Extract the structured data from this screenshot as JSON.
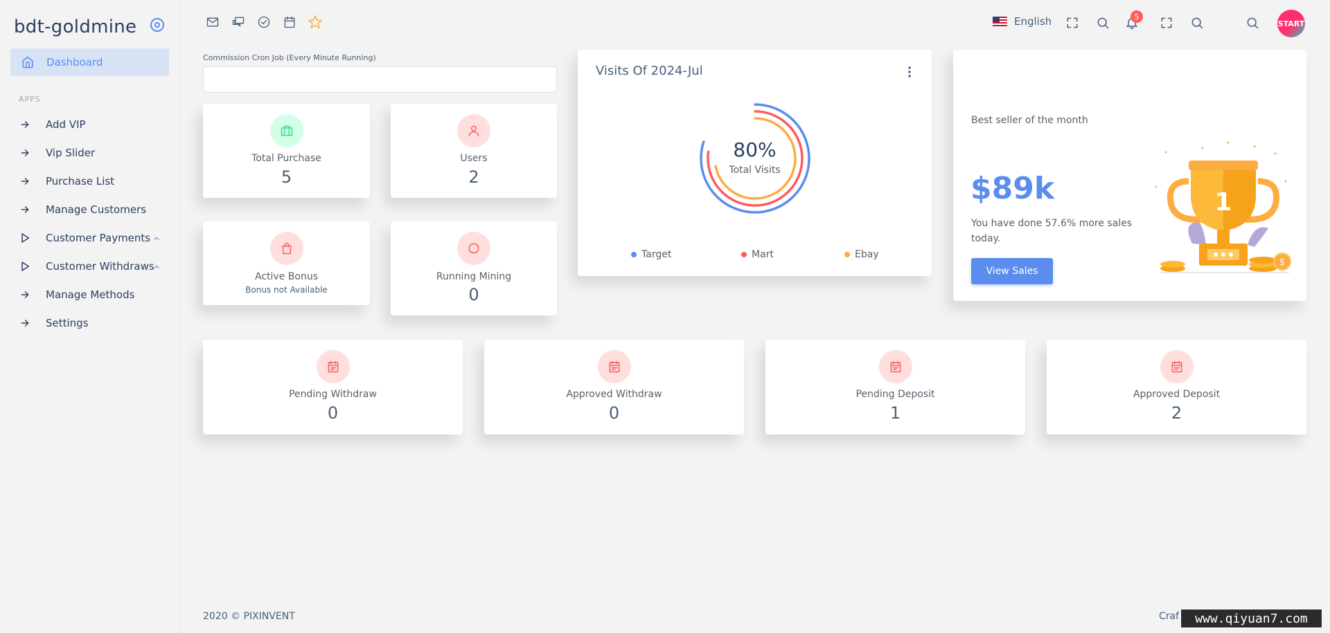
{
  "sidebar": {
    "brand": "bdt-goldmine",
    "active_item": "Dashboard",
    "section_label": "APPS",
    "items": [
      {
        "label": "Add VIP",
        "icon": "arrow-right-icon"
      },
      {
        "label": "Vip Slider",
        "icon": "arrow-right-icon"
      },
      {
        "label": "Purchase List",
        "icon": "arrow-right-icon"
      },
      {
        "label": "Manage Customers",
        "icon": "arrow-right-icon"
      },
      {
        "label": "Customer Payments",
        "icon": "play-triangle-icon",
        "expandable": true
      },
      {
        "label": "Customer Withdraws",
        "icon": "play-triangle-icon",
        "expandable": true
      },
      {
        "label": "Manage Methods",
        "icon": "arrow-right-icon"
      },
      {
        "label": "Settings",
        "icon": "arrow-right-icon"
      }
    ]
  },
  "topbar": {
    "language": "English",
    "notification_count": "5",
    "avatar_text": "START"
  },
  "cron": {
    "label": "Commission Cron Job (Every Minute Running)",
    "value": ""
  },
  "stats_small": [
    {
      "name": "Total Purchase",
      "value": "5",
      "icon": "briefcase-icon"
    },
    {
      "name": "Users",
      "value": "2",
      "icon": "user-icon"
    },
    {
      "name": "Active Bonus",
      "sub": "Bonus not Available",
      "icon": "shopping-bag-icon"
    },
    {
      "name": "Running Mining",
      "value": "0",
      "icon": "circle-icon"
    }
  ],
  "visits": {
    "title": "Visits Of 2024-Jul",
    "percent": "80%",
    "center_label": "Total Visits",
    "legend": [
      {
        "name": "Target",
        "color": "#5a8dee"
      },
      {
        "name": "Mart",
        "color": "#ff5b5c"
      },
      {
        "name": "Ebay",
        "color": "#fdac41"
      }
    ]
  },
  "sales": {
    "subtitle": "Best seller of the month",
    "amount": "$89k",
    "text": "You have done 57.6% more sales today.",
    "button": "View Sales"
  },
  "stats_wide": [
    {
      "name": "Pending Withdraw",
      "value": "0"
    },
    {
      "name": "Approved Withdraw",
      "value": "0"
    },
    {
      "name": "Pending Deposit",
      "value": "1"
    },
    {
      "name": "Approved Deposit",
      "value": "2"
    }
  ],
  "footer": {
    "left": "2020 © PIXINVENT",
    "right": "Craf"
  },
  "watermark": "www.qiyuan7.com",
  "colors": {
    "primary": "#5a8dee",
    "danger": "#ff5b5c",
    "warning": "#fdac41",
    "success": "#39da8a"
  }
}
